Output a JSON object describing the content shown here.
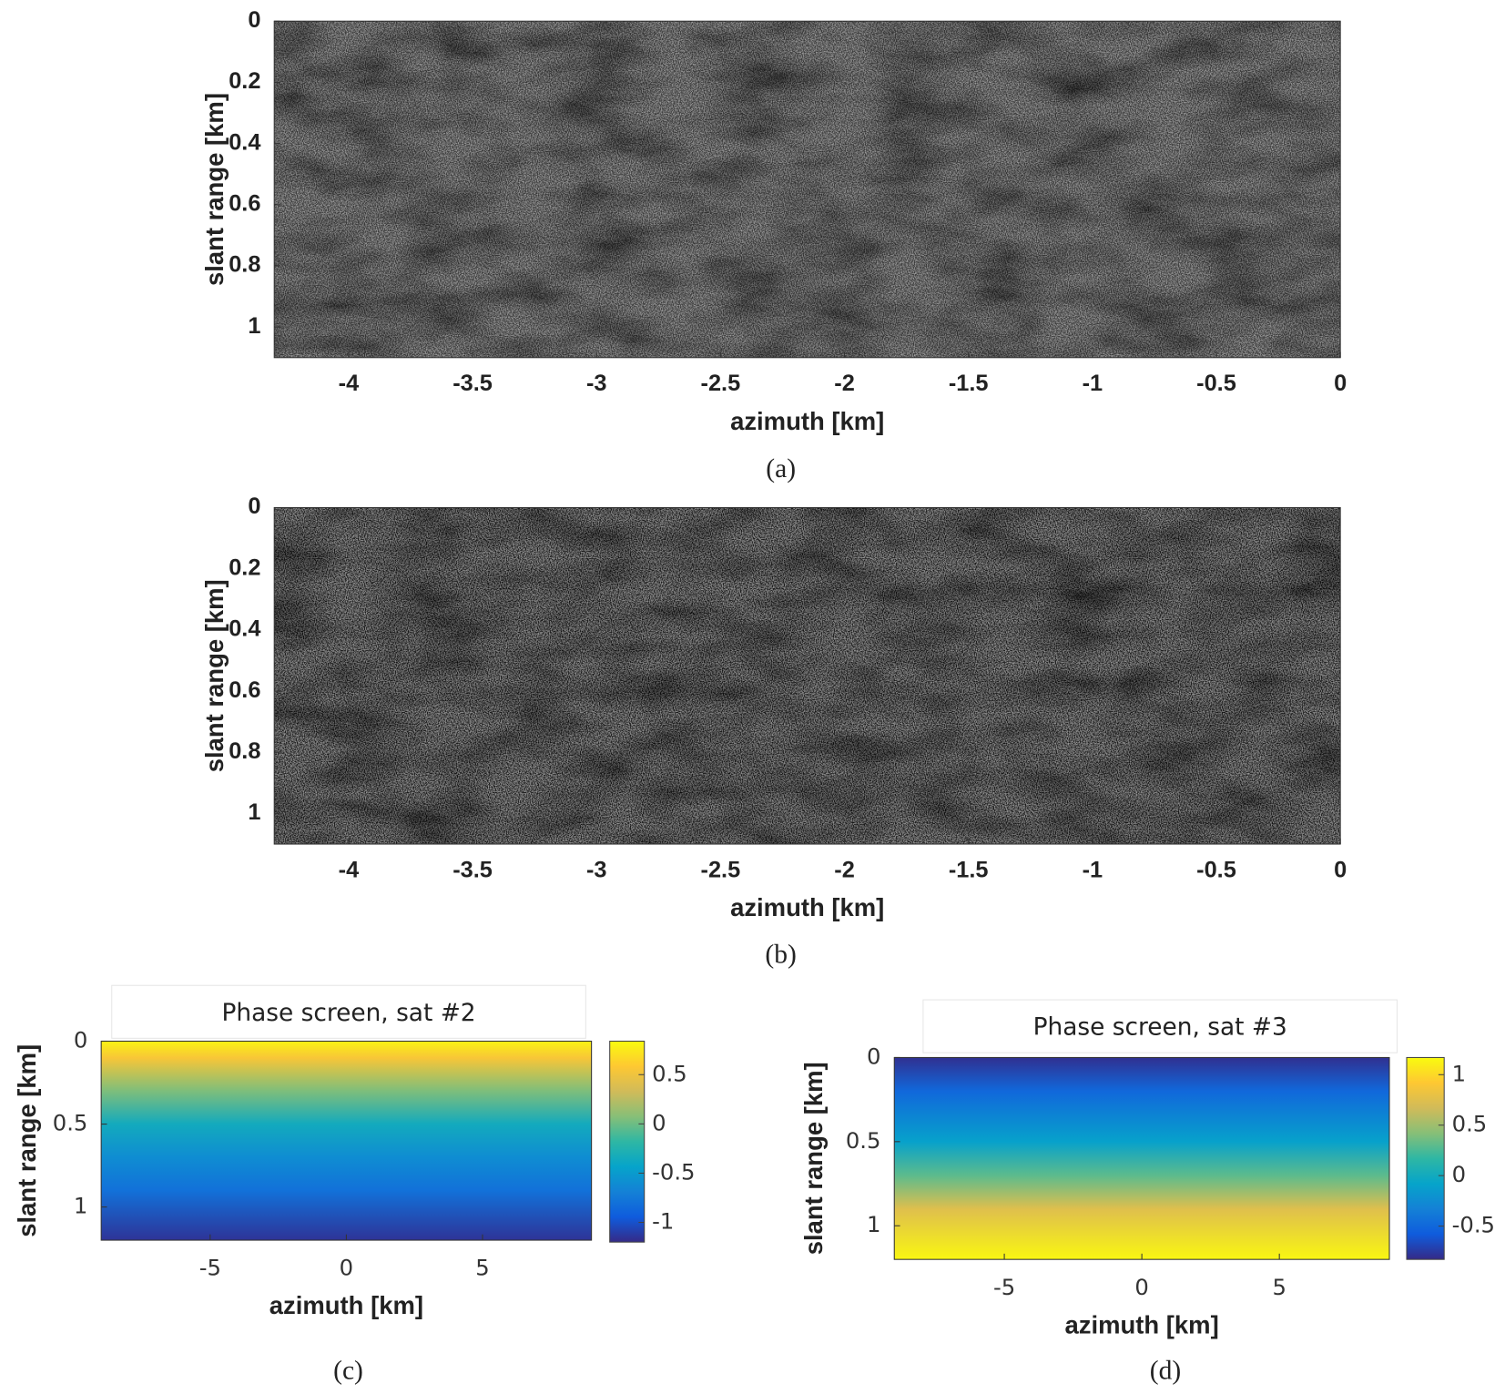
{
  "chart_data": [
    {
      "type": "image",
      "xlabel": "azimuth [km]",
      "ylabel": "slant range [km]",
      "caption": "(a)",
      "xlim": [
        -4.3,
        0
      ],
      "ylim": [
        0,
        1.1
      ],
      "y_reversed": true,
      "xticks": [
        -4,
        -3.5,
        -3,
        -2.5,
        -2,
        -1.5,
        -1,
        -0.5,
        0
      ],
      "yticks": [
        0,
        0.2,
        0.4,
        0.6,
        0.8,
        1
      ]
    },
    {
      "type": "image",
      "xlabel": "azimuth [km]",
      "ylabel": "slant range [km]",
      "caption": "(b)",
      "xlim": [
        -4.3,
        0
      ],
      "ylim": [
        0,
        1.1
      ],
      "y_reversed": true,
      "xticks": [
        -4,
        -3.5,
        -3,
        -2.5,
        -2,
        -1.5,
        -1,
        -0.5,
        0
      ],
      "yticks": [
        0,
        0.2,
        0.4,
        0.6,
        0.8,
        1
      ]
    },
    {
      "type": "heatmap",
      "title": "Phase screen, sat #2",
      "xlabel": "azimuth [km]",
      "ylabel": "slant range [km]",
      "caption": "(c)",
      "xlim": [
        -9,
        9
      ],
      "ylim": [
        0,
        1.2
      ],
      "y_reversed": true,
      "xticks": [
        -5,
        0,
        5
      ],
      "yticks": [
        0,
        0.5,
        1
      ],
      "y": [
        0,
        0.1,
        0.3,
        0.5,
        0.7,
        0.9,
        1.2
      ],
      "values": [
        0.8,
        0.55,
        0.05,
        -0.35,
        -0.6,
        -0.8,
        -1.15
      ],
      "colormap": "parula",
      "clim": [
        -1.2,
        0.84
      ],
      "cticks": [
        -1,
        -0.5,
        0,
        0.5
      ]
    },
    {
      "type": "heatmap",
      "title": "Phase screen, sat #3",
      "xlabel": "azimuth [km]",
      "ylabel": "slant range [km]",
      "caption": "(d)",
      "xlim": [
        -9,
        9
      ],
      "ylim": [
        0,
        1.2
      ],
      "y_reversed": true,
      "xticks": [
        -5,
        0,
        5
      ],
      "yticks": [
        0,
        0.5,
        1
      ],
      "y": [
        0,
        0.2,
        0.5,
        0.7,
        0.9,
        1.2
      ],
      "values": [
        -0.8,
        -0.5,
        -0.1,
        0.3,
        0.75,
        1.15
      ],
      "colormap": "parula",
      "clim": [
        -0.83,
        1.17
      ],
      "cticks": [
        -0.5,
        0,
        0.5,
        1
      ]
    }
  ]
}
